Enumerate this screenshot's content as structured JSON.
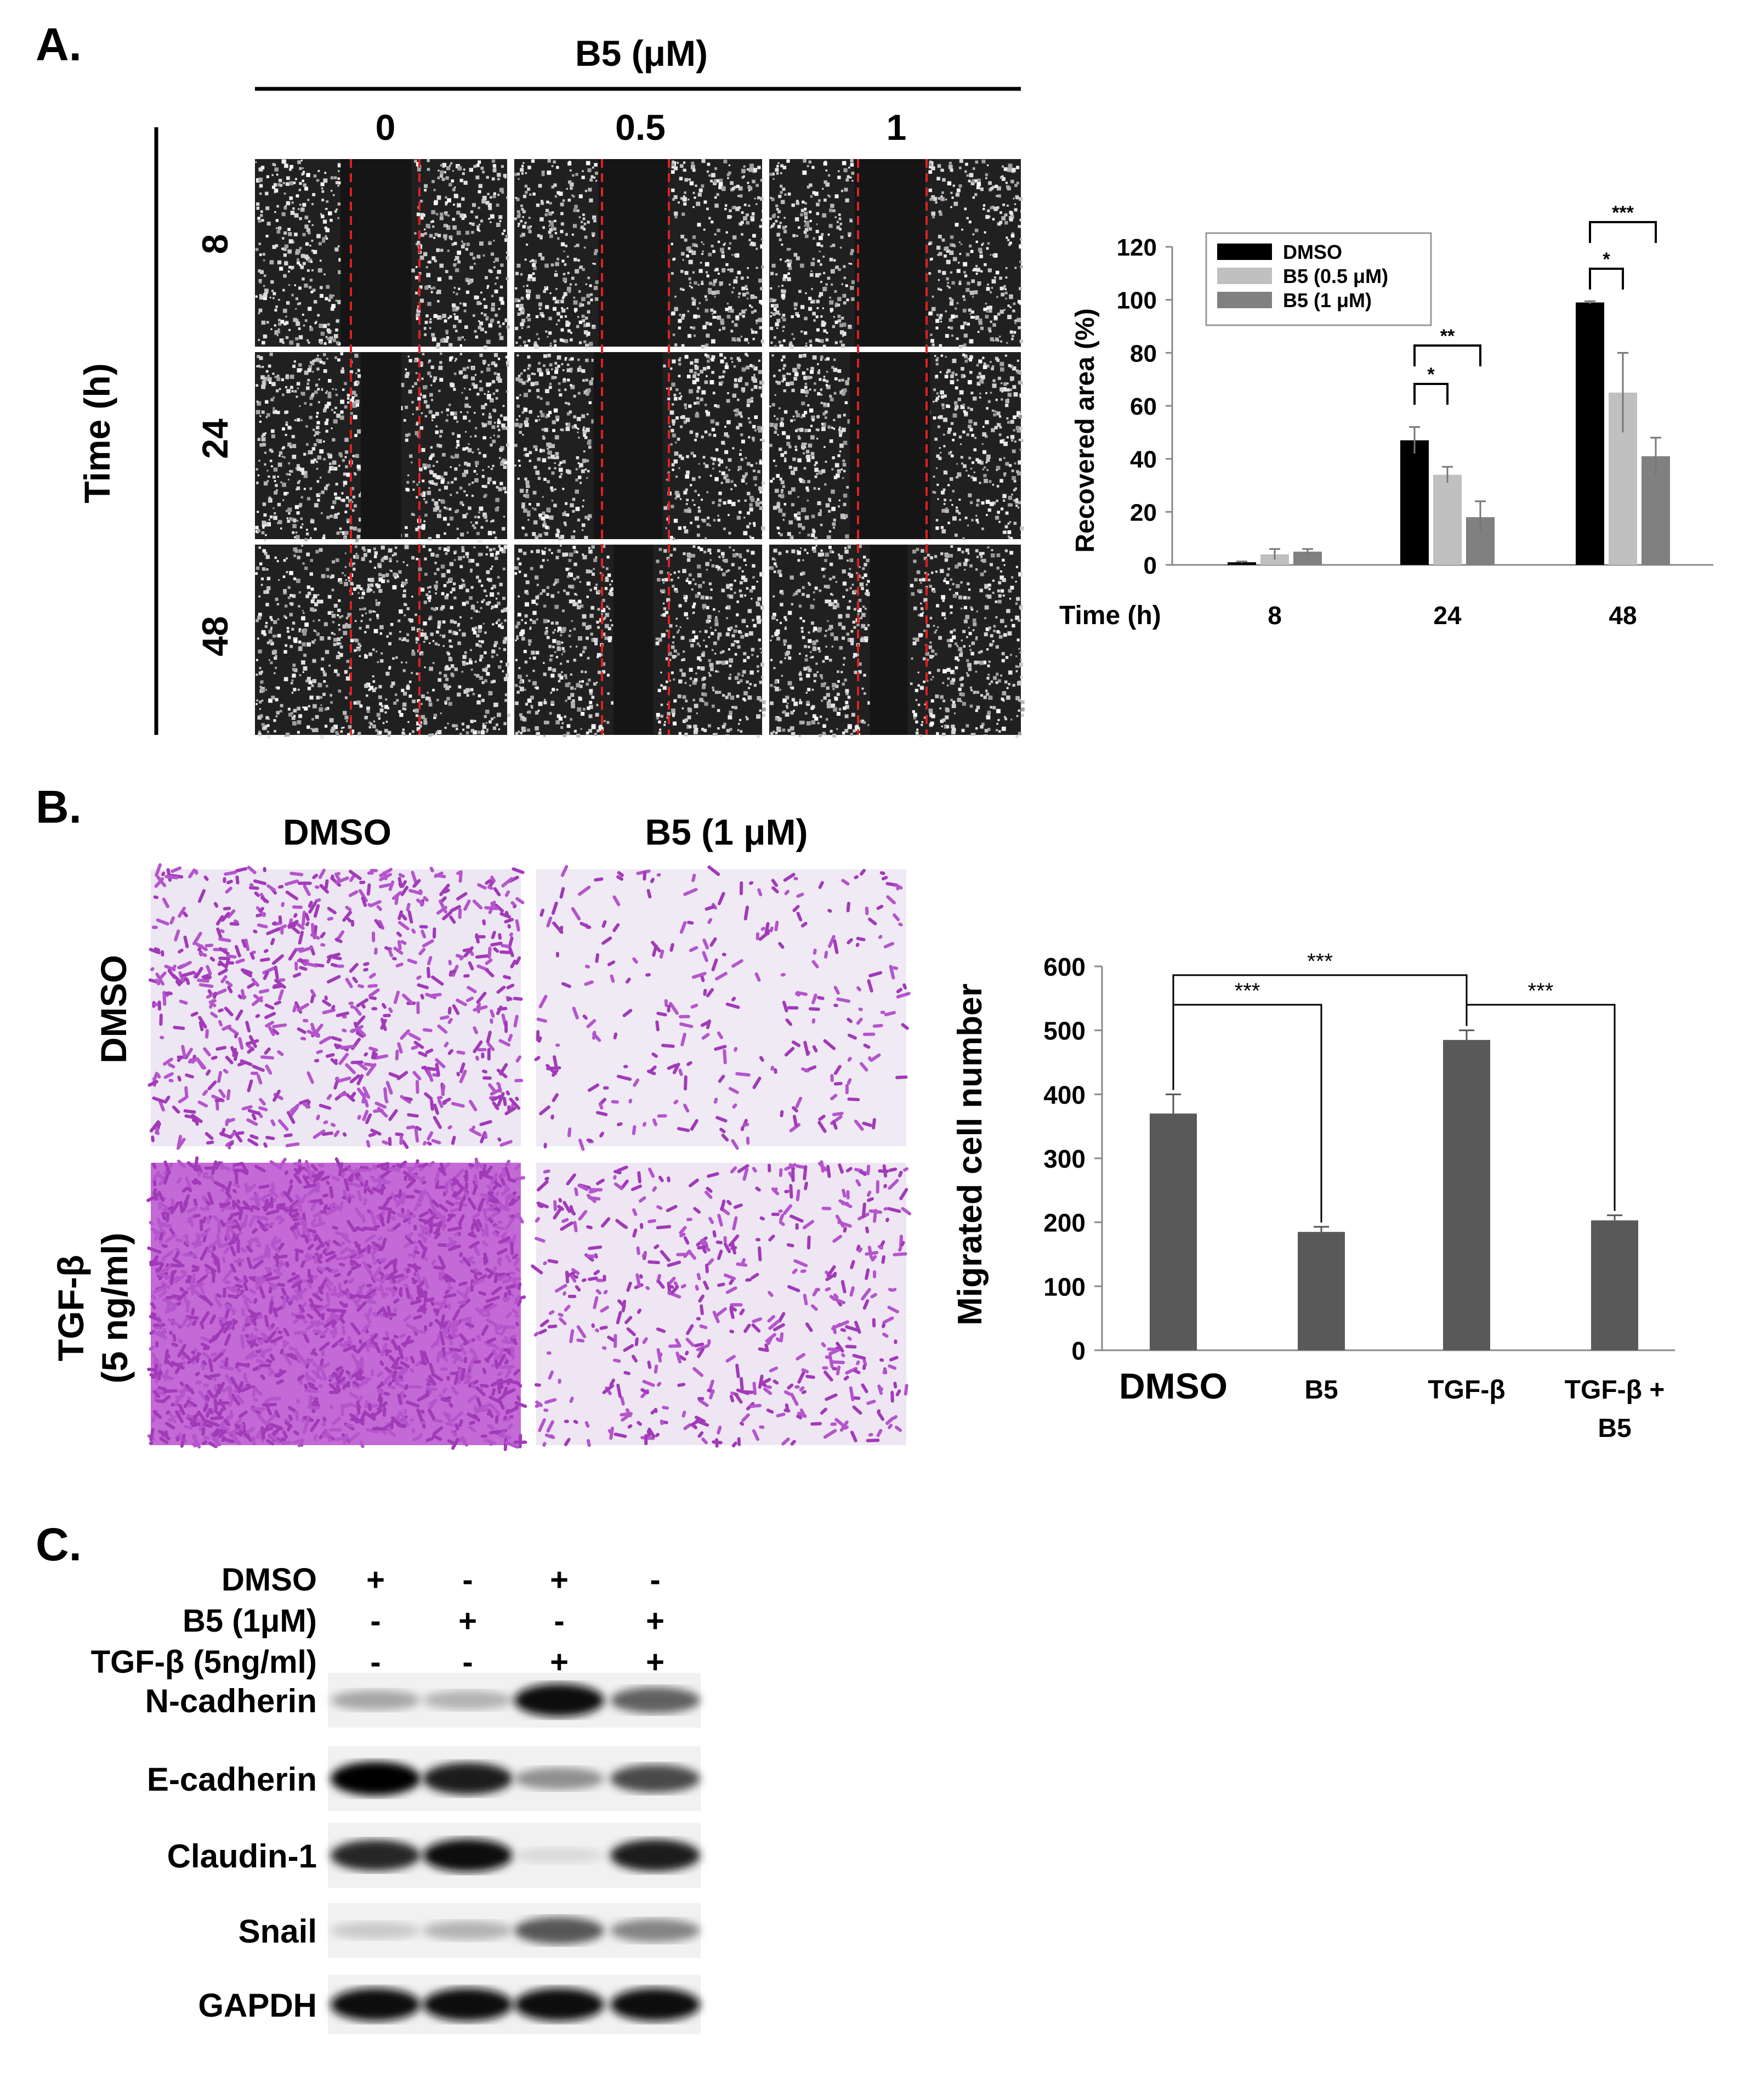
{
  "panel_a": {
    "label": "A.",
    "dose_header": "B5 (μM)",
    "doses": [
      "0",
      "0.5",
      "1"
    ],
    "time_label": "Time (h)",
    "times": [
      "8",
      "24",
      "48"
    ],
    "chart_data": {
      "type": "bar",
      "categories": [
        "8",
        "24",
        "48"
      ],
      "xlabel": "Time (h)",
      "ylabel": "Recovered area (%)",
      "ylim": [
        0,
        120
      ],
      "yticks": [
        "0",
        "20",
        "40",
        "60",
        "80",
        "100",
        "120"
      ],
      "series": [
        {
          "name": "DMSO",
          "values": [
            1,
            47,
            99
          ],
          "errors": [
            0.3,
            5,
            0.5
          ],
          "color": "#000000"
        },
        {
          "name": "B5 (0.5 μM)",
          "values": [
            4,
            34,
            65
          ],
          "errors": [
            2,
            3,
            15
          ],
          "color": "#c0c0c0"
        },
        {
          "name": "B5 (1 μM)",
          "values": [
            5,
            18,
            41
          ],
          "errors": [
            1,
            6,
            7
          ],
          "color": "#808080"
        }
      ],
      "significance": [
        {
          "category": "24",
          "from": "DMSO",
          "to": "B5 (0.5 μM)",
          "label": "*"
        },
        {
          "category": "24",
          "from": "DMSO",
          "to": "B5 (1 μM)",
          "label": "**"
        },
        {
          "category": "48",
          "from": "DMSO",
          "to": "B5 (0.5 μM)",
          "label": "*"
        },
        {
          "category": "48",
          "from": "DMSO",
          "to": "B5 (1 μM)",
          "label": "***"
        }
      ],
      "legend_position": "top-left"
    }
  },
  "panel_b": {
    "label": "B.",
    "col_headers": [
      "DMSO",
      "B5 (1 μM)"
    ],
    "row_headers": [
      [
        "DMSO"
      ],
      [
        "TGF-β",
        "(5 ng/ml)"
      ]
    ],
    "chart_data": {
      "type": "bar",
      "categories": [
        "DMSO",
        "B5",
        "TGF-β",
        "TGF-β + B5"
      ],
      "category_lines": [
        [
          "DMSO"
        ],
        [
          "B5"
        ],
        [
          "TGF-β"
        ],
        [
          "TGF-β +",
          "B5"
        ]
      ],
      "values": [
        370,
        185,
        485,
        203
      ],
      "errors": [
        30,
        8,
        15,
        8
      ],
      "ylabel": "Migrated cell number",
      "ylim": [
        0,
        600
      ],
      "yticks": [
        "0",
        "100",
        "200",
        "300",
        "400",
        "500",
        "600"
      ],
      "color": "#595959",
      "significance": [
        {
          "from": "DMSO",
          "to": "B5",
          "label": "***"
        },
        {
          "from": "DMSO",
          "to": "TGF-β",
          "label": "***"
        },
        {
          "from": "TGF-β",
          "to": "TGF-β + B5",
          "label": "***"
        }
      ]
    }
  },
  "panel_c": {
    "label": "C.",
    "conditions": [
      {
        "name": "DMSO",
        "signs": [
          "+",
          "-",
          "+",
          "-"
        ]
      },
      {
        "name": "B5 (1μM)",
        "signs": [
          "-",
          "+",
          "-",
          "+"
        ]
      },
      {
        "name": "TGF-β (5ng/ml)",
        "signs": [
          "-",
          "-",
          "+",
          "+"
        ]
      }
    ],
    "proteins": [
      {
        "name": "N-cadherin",
        "intensities": [
          0.3,
          0.25,
          0.95,
          0.6
        ]
      },
      {
        "name": "E-cadherin",
        "intensities": [
          1.0,
          0.9,
          0.4,
          0.7
        ]
      },
      {
        "name": "Claudin-1",
        "intensities": [
          0.85,
          0.95,
          0.08,
          0.9
        ]
      },
      {
        "name": "Snail",
        "intensities": [
          0.15,
          0.25,
          0.65,
          0.45
        ]
      },
      {
        "name": "GAPDH",
        "intensities": [
          0.95,
          0.95,
          0.95,
          0.95
        ]
      }
    ]
  }
}
